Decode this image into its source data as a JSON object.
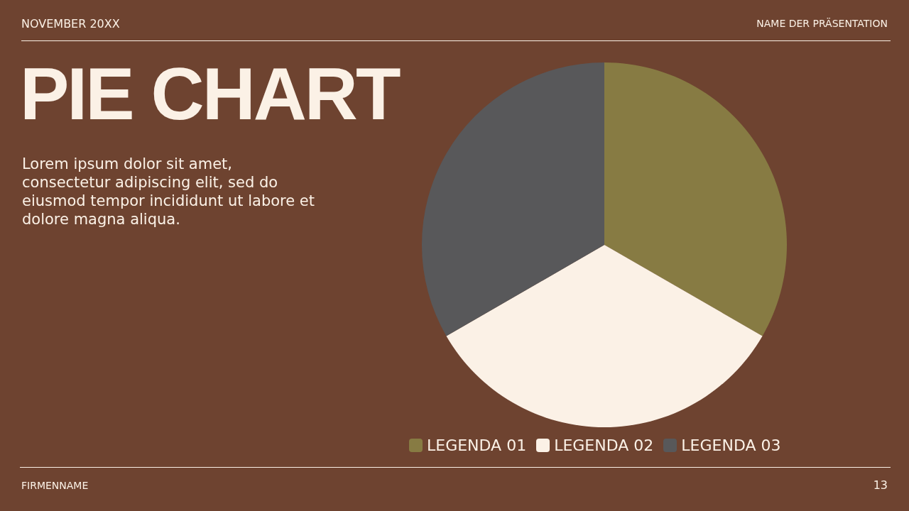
{
  "chart_data": {
    "type": "pie",
    "title": "PIE CHART",
    "annotations": [
      "NOVEMBER 20XX",
      "NAME DER PRÄSENTATION",
      "Lorem ipsum dolor sit amet, consectetur adipiscing elit, sed do eiusmod tempor incididunt ut labore et dolore magna aliqua.",
      "FIRMENNAME",
      "13"
    ],
    "categories": [
      "LEGENDA 01",
      "LEGENDA 02",
      "LEGENDA 03"
    ],
    "values": [
      33.33,
      33.33,
      33.34
    ],
    "colors": [
      "#877b43",
      "#fbf1e6",
      "#58585a"
    ],
    "legend": "bottom"
  }
}
